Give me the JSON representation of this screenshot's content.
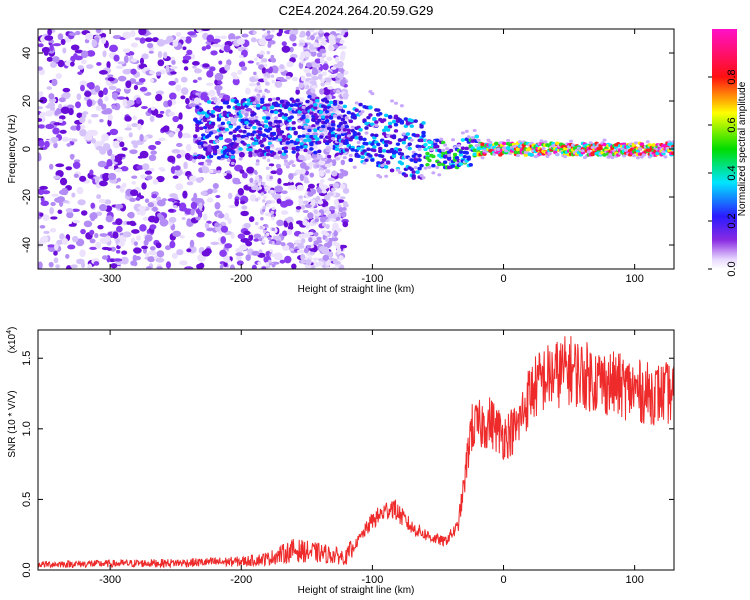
{
  "title": "C2E4.2024.264.20.59.G29",
  "chart_data": [
    {
      "type": "heatmap",
      "xlabel": "Height of straight line (km)",
      "ylabel": "Frequency (Hz)",
      "xlim": [
        -355,
        130
      ],
      "ylim": [
        -50,
        50
      ],
      "xticks": [
        "-300",
        "-200",
        "-100",
        "0",
        "100"
      ],
      "yticks": [
        "-40",
        "-20",
        "0",
        "20",
        "40"
      ],
      "colorbar": {
        "label": "Normalized spectral amplitude",
        "range": [
          0.0,
          1.0
        ],
        "ticks": [
          "0.0",
          "0.2",
          "0.4",
          "0.6",
          "0.8"
        ],
        "colormap": "rainbow (purple-blue-cyan-green-yellow-red-magenta)"
      },
      "ridge": [
        {
          "x": -230,
          "freq": 8
        },
        {
          "x": -150,
          "freq": 10
        },
        {
          "x": -100,
          "freq": 6
        },
        {
          "x": -70,
          "freq": 0
        },
        {
          "x": -40,
          "freq": -3
        },
        {
          "x": -20,
          "freq": 0
        },
        {
          "x": 0,
          "freq": 0
        },
        {
          "x": 130,
          "freq": 0
        }
      ]
    },
    {
      "type": "line",
      "xlabel": "Height of straight line (km)",
      "ylabel": "SNR (10 * V/V)",
      "scale_label": "(x10",
      "scale_exp": "4",
      "xlim": [
        -355,
        130
      ],
      "ylim": [
        0,
        17000
      ],
      "xticks": [
        "-300",
        "-200",
        "-100",
        "0",
        "100"
      ],
      "yticks": [
        "0.0",
        "0.5",
        "1.0",
        "1.5"
      ],
      "color": "#ee2a2a",
      "series": [
        {
          "values": [
            [
              -355,
              400
            ],
            [
              -300,
              450
            ],
            [
              -250,
              500
            ],
            [
              -200,
              600
            ],
            [
              -180,
              800
            ],
            [
              -160,
              1400
            ],
            [
              -140,
              1200
            ],
            [
              -120,
              900
            ],
            [
              -100,
              3500
            ],
            [
              -85,
              4500
            ],
            [
              -70,
              3000
            ],
            [
              -55,
              2300
            ],
            [
              -45,
              2000
            ],
            [
              -35,
              3000
            ],
            [
              -30,
              6000
            ],
            [
              -25,
              10000
            ],
            [
              -10,
              10500
            ],
            [
              0,
              9500
            ],
            [
              10,
              10000
            ],
            [
              20,
              12500
            ],
            [
              30,
              13500
            ],
            [
              50,
              14200
            ],
            [
              70,
              13500
            ],
            [
              90,
              13000
            ],
            [
              110,
              12500
            ],
            [
              130,
              12500
            ]
          ]
        }
      ]
    }
  ]
}
